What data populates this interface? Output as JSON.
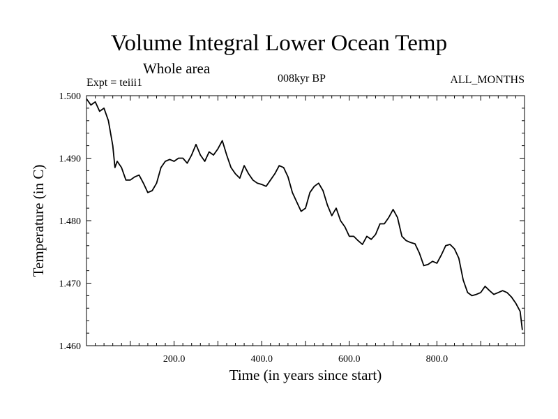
{
  "header": {
    "title": "Volume Integral Lower Ocean Temp",
    "subtitle": "Whole area",
    "experiment": "Expt = teiii1",
    "period": "008kyr BP",
    "months": "ALL_MONTHS"
  },
  "chart_data": {
    "type": "line",
    "title": "Volume Integral Lower Ocean Temp",
    "subtitle": "Whole area",
    "xlabel": "Time (in years since start)",
    "ylabel": "Temperature (in C)",
    "xlim": [
      0,
      1000
    ],
    "ylim": [
      1.46,
      1.5
    ],
    "x_ticks": [
      200,
      400,
      600,
      800
    ],
    "x_tick_labels": [
      "200.0",
      "400.0",
      "600.0",
      "800.0"
    ],
    "y_ticks": [
      1.46,
      1.47,
      1.48,
      1.49,
      1.5
    ],
    "y_tick_labels": [
      "1.460",
      "1.470",
      "1.480",
      "1.490",
      "1.500"
    ],
    "grid": false,
    "series": [
      {
        "x": [
          0,
          10,
          20,
          30,
          40,
          50,
          60,
          65,
          70,
          80,
          90,
          100,
          110,
          120,
          130,
          140,
          150,
          160,
          170,
          180,
          190,
          200,
          210,
          220,
          230,
          240,
          250,
          260,
          270,
          280,
          290,
          300,
          310,
          320,
          330,
          340,
          350,
          360,
          370,
          380,
          390,
          400,
          410,
          420,
          430,
          440,
          450,
          460,
          470,
          480,
          490,
          500,
          510,
          520,
          530,
          540,
          550,
          560,
          570,
          580,
          590,
          600,
          610,
          620,
          630,
          640,
          650,
          660,
          670,
          680,
          690,
          700,
          710,
          720,
          730,
          740,
          750,
          760,
          770,
          780,
          790,
          800,
          810,
          820,
          830,
          840,
          850,
          860,
          870,
          880,
          890,
          900,
          910,
          920,
          930,
          940,
          950,
          960,
          970,
          980,
          990,
          995
        ],
        "y": [
          1.4995,
          1.4985,
          1.499,
          1.4975,
          1.498,
          1.496,
          1.492,
          1.4885,
          1.4895,
          1.4885,
          1.4865,
          1.4865,
          1.487,
          1.4873,
          1.486,
          1.4845,
          1.4848,
          1.486,
          1.4885,
          1.4895,
          1.4898,
          1.4895,
          1.49,
          1.49,
          1.4892,
          1.4905,
          1.4922,
          1.4905,
          1.4895,
          1.491,
          1.4905,
          1.4915,
          1.4928,
          1.4905,
          1.4885,
          1.4875,
          1.4868,
          1.4888,
          1.4875,
          1.4865,
          1.486,
          1.4858,
          1.4855,
          1.4865,
          1.4875,
          1.4888,
          1.4885,
          1.487,
          1.4845,
          1.483,
          1.4815,
          1.482,
          1.4845,
          1.4855,
          1.486,
          1.4848,
          1.4825,
          1.4808,
          1.482,
          1.48,
          1.479,
          1.4775,
          1.4775,
          1.4768,
          1.4762,
          1.4775,
          1.477,
          1.4778,
          1.4795,
          1.4795,
          1.4805,
          1.4818,
          1.4805,
          1.4775,
          1.4768,
          1.4765,
          1.4763,
          1.4748,
          1.4728,
          1.473,
          1.4735,
          1.4732,
          1.4745,
          1.476,
          1.4762,
          1.4755,
          1.474,
          1.4705,
          1.4685,
          1.468,
          1.4682,
          1.4685,
          1.4695,
          1.4688,
          1.4682,
          1.4685,
          1.4688,
          1.4685,
          1.4678,
          1.4668,
          1.4655,
          1.4625
        ]
      }
    ]
  }
}
